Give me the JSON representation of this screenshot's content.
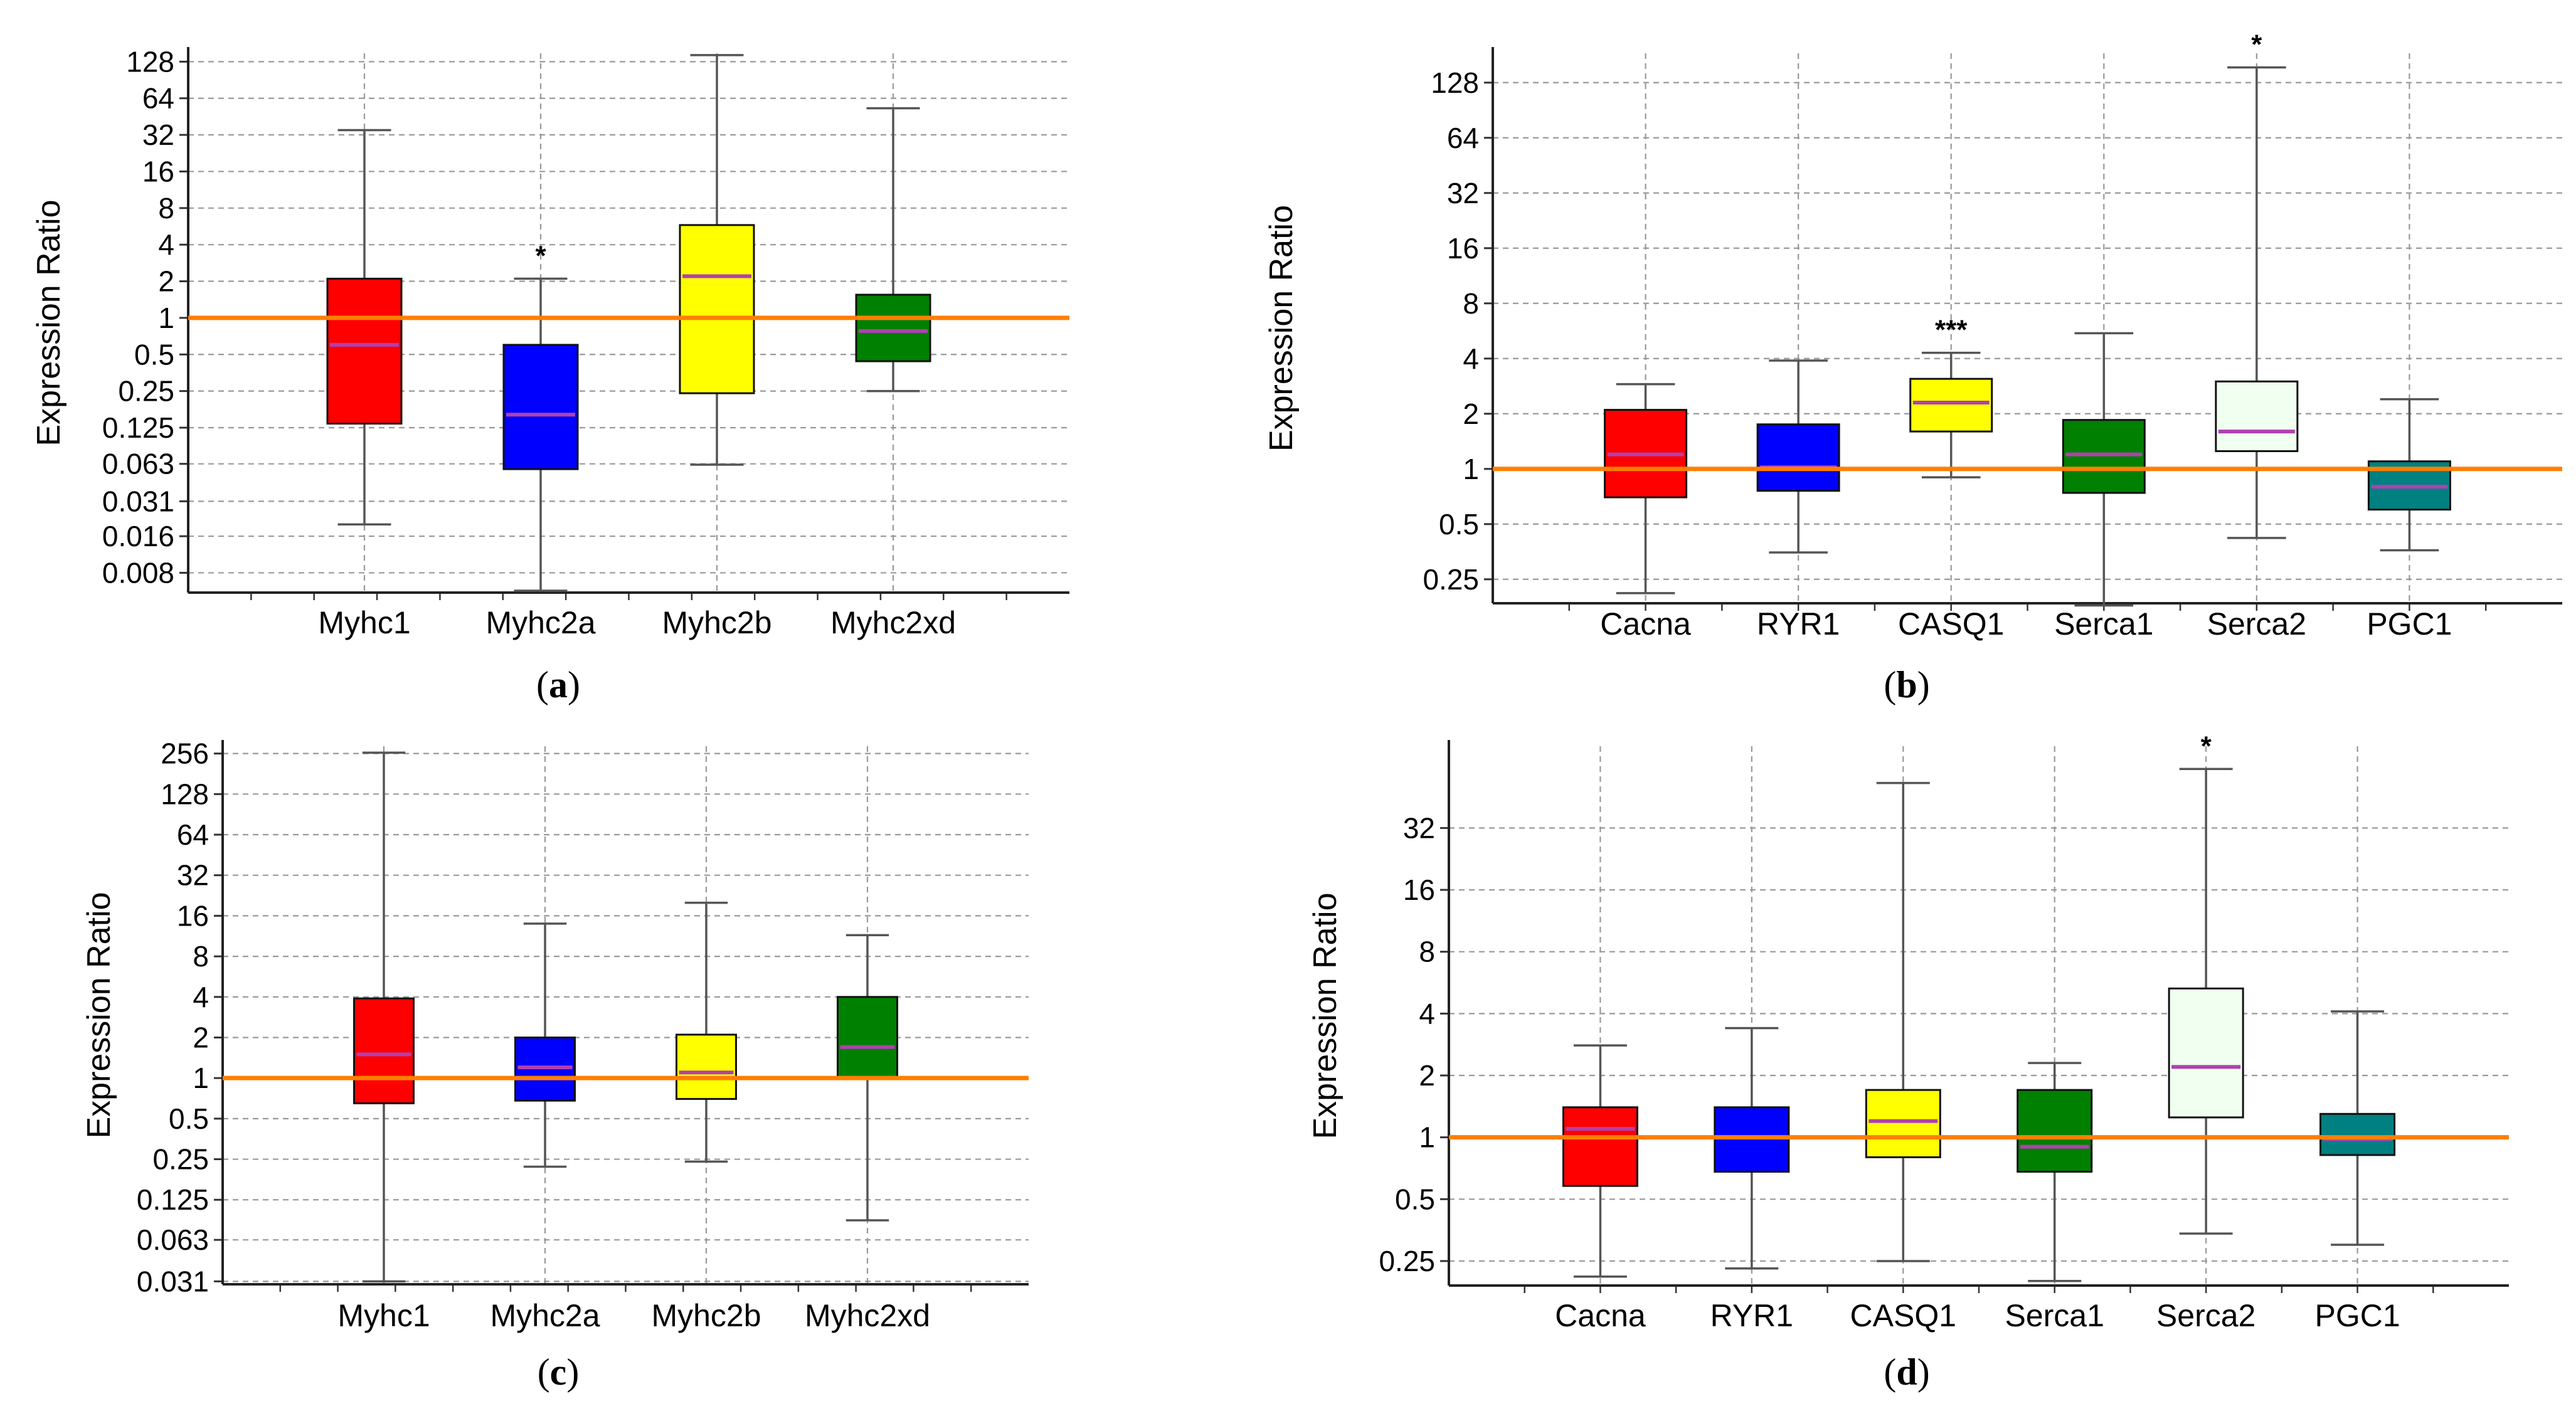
{
  "figure": {
    "colors": {
      "reference_line": "#ff7f00",
      "median": "#b040b0",
      "grid": "#999999",
      "red": "#ff0000",
      "blue": "#0000ff",
      "yellow": "#ffff00",
      "green": "#008000",
      "palegreen": "#f0fff0",
      "teal": "#008080"
    }
  },
  "chart_data": [
    {
      "id": "a",
      "type": "box",
      "panel_label": "a",
      "ylabel": "Expression Ratio",
      "yscale": "log2",
      "ylim": [
        0.0055,
        150
      ],
      "yticks": [
        {
          "v": 0.008,
          "label": "0.008"
        },
        {
          "v": 0.016,
          "label": "0.016"
        },
        {
          "v": 0.031,
          "label": "0.031"
        },
        {
          "v": 0.063,
          "label": "0.063"
        },
        {
          "v": 0.125,
          "label": "0.125"
        },
        {
          "v": 0.25,
          "label": "0.25"
        },
        {
          "v": 0.5,
          "label": "0.5"
        },
        {
          "v": 1,
          "label": "1"
        },
        {
          "v": 2,
          "label": "2"
        },
        {
          "v": 4,
          "label": "4"
        },
        {
          "v": 8,
          "label": "8"
        },
        {
          "v": 16,
          "label": "16"
        },
        {
          "v": 32,
          "label": "32"
        },
        {
          "v": 64,
          "label": "64"
        },
        {
          "v": 128,
          "label": "128"
        }
      ],
      "reference_line": 1,
      "grid": true,
      "boxes": [
        {
          "label": "Myhc1",
          "color": "red",
          "whisker_low": 0.02,
          "q1": 0.135,
          "median": 0.6,
          "q3": 2.1,
          "whisker_high": 35,
          "annotation": ""
        },
        {
          "label": "Myhc2a",
          "color": "blue",
          "whisker_low": 0.0057,
          "q1": 0.057,
          "median": 0.16,
          "q3": 0.6,
          "whisker_high": 2.1,
          "annotation": "*"
        },
        {
          "label": "Myhc2b",
          "color": "yellow",
          "whisker_low": 0.062,
          "q1": 0.24,
          "median": 2.2,
          "q3": 5.8,
          "whisker_high": 145,
          "annotation": ""
        },
        {
          "label": "Myhc2xd",
          "color": "green",
          "whisker_low": 0.25,
          "q1": 0.44,
          "median": 0.78,
          "q3": 1.55,
          "whisker_high": 53,
          "annotation": ""
        }
      ]
    },
    {
      "id": "b",
      "type": "box",
      "panel_label": "b",
      "ylabel": "Expression Ratio",
      "yscale": "log2",
      "ylim": [
        0.185,
        185
      ],
      "yticks": [
        {
          "v": 0.25,
          "label": "0.25"
        },
        {
          "v": 0.5,
          "label": "0.5"
        },
        {
          "v": 1,
          "label": "1"
        },
        {
          "v": 2,
          "label": "2"
        },
        {
          "v": 4,
          "label": "4"
        },
        {
          "v": 8,
          "label": "8"
        },
        {
          "v": 16,
          "label": "16"
        },
        {
          "v": 32,
          "label": "32"
        },
        {
          "v": 64,
          "label": "64"
        },
        {
          "v": 128,
          "label": "128"
        }
      ],
      "reference_line": 1,
      "grid": true,
      "boxes": [
        {
          "label": "Cacna",
          "color": "red",
          "whisker_low": 0.21,
          "q1": 0.7,
          "median": 1.2,
          "q3": 2.1,
          "whisker_high": 2.9,
          "annotation": ""
        },
        {
          "label": "RYR1",
          "color": "blue",
          "whisker_low": 0.35,
          "q1": 0.76,
          "median": 1.02,
          "q3": 1.75,
          "whisker_high": 3.9,
          "annotation": ""
        },
        {
          "label": "CASQ1",
          "color": "yellow",
          "whisker_low": 0.9,
          "q1": 1.6,
          "median": 2.3,
          "q3": 3.1,
          "whisker_high": 4.3,
          "annotation": "***"
        },
        {
          "label": "Serca1",
          "color": "green",
          "whisker_low": 0.18,
          "q1": 0.74,
          "median": 1.2,
          "q3": 1.85,
          "whisker_high": 5.5,
          "annotation": ""
        },
        {
          "label": "Serca2",
          "color": "palegreen",
          "whisker_low": 0.42,
          "q1": 1.25,
          "median": 1.6,
          "q3": 3.0,
          "whisker_high": 155,
          "annotation": "*"
        },
        {
          "label": "PGC1",
          "color": "teal",
          "whisker_low": 0.36,
          "q1": 0.6,
          "median": 0.8,
          "q3": 1.1,
          "whisker_high": 2.4,
          "annotation": ""
        }
      ]
    },
    {
      "id": "c",
      "type": "box",
      "panel_label": "c",
      "ylabel": "Expression Ratio",
      "yscale": "log2",
      "ylim": [
        0.0295,
        290
      ],
      "yticks": [
        {
          "v": 0.031,
          "label": "0.031"
        },
        {
          "v": 0.063,
          "label": "0.063"
        },
        {
          "v": 0.125,
          "label": "0.125"
        },
        {
          "v": 0.25,
          "label": "0.25"
        },
        {
          "v": 0.5,
          "label": "0.5"
        },
        {
          "v": 1,
          "label": "1"
        },
        {
          "v": 2,
          "label": "2"
        },
        {
          "v": 4,
          "label": "4"
        },
        {
          "v": 8,
          "label": "8"
        },
        {
          "v": 16,
          "label": "16"
        },
        {
          "v": 32,
          "label": "32"
        },
        {
          "v": 64,
          "label": "64"
        },
        {
          "v": 128,
          "label": "128"
        },
        {
          "v": 256,
          "label": "256"
        }
      ],
      "reference_line": 1,
      "grid": true,
      "boxes": [
        {
          "label": "Myhc1",
          "color": "red",
          "whisker_low": 0.031,
          "q1": 0.65,
          "median": 1.5,
          "q3": 3.9,
          "whisker_high": 260,
          "annotation": ""
        },
        {
          "label": "Myhc2a",
          "color": "blue",
          "whisker_low": 0.22,
          "q1": 0.68,
          "median": 1.2,
          "q3": 2.0,
          "whisker_high": 14,
          "annotation": ""
        },
        {
          "label": "Myhc2b",
          "color": "yellow",
          "whisker_low": 0.24,
          "q1": 0.7,
          "median": 1.1,
          "q3": 2.1,
          "whisker_high": 20,
          "annotation": ""
        },
        {
          "label": "Myhc2xd",
          "color": "green",
          "whisker_low": 0.088,
          "q1": 1.0,
          "median": 1.7,
          "q3": 4.0,
          "whisker_high": 11.5,
          "annotation": ""
        }
      ]
    },
    {
      "id": "d",
      "type": "box",
      "panel_label": "d",
      "ylabel": "Expression Ratio",
      "yscale": "log2",
      "ylim": [
        0.19,
        80
      ],
      "yticks": [
        {
          "v": 0.25,
          "label": "0.25"
        },
        {
          "v": 0.5,
          "label": "0.5"
        },
        {
          "v": 1,
          "label": "1"
        },
        {
          "v": 2,
          "label": "2"
        },
        {
          "v": 4,
          "label": "4"
        },
        {
          "v": 8,
          "label": "8"
        },
        {
          "v": 16,
          "label": "16"
        },
        {
          "v": 32,
          "label": "32"
        }
      ],
      "reference_line": 1,
      "grid": true,
      "boxes": [
        {
          "label": "Cacna",
          "color": "red",
          "whisker_low": 0.21,
          "q1": 0.58,
          "median": 1.1,
          "q3": 1.4,
          "whisker_high": 2.8,
          "annotation": ""
        },
        {
          "label": "RYR1",
          "color": "blue",
          "whisker_low": 0.23,
          "q1": 0.68,
          "median": 1.0,
          "q3": 1.4,
          "whisker_high": 3.4,
          "annotation": ""
        },
        {
          "label": "CASQ1",
          "color": "yellow",
          "whisker_low": 0.25,
          "q1": 0.8,
          "median": 1.2,
          "q3": 1.7,
          "whisker_high": 53,
          "annotation": ""
        },
        {
          "label": "Serca1",
          "color": "green",
          "whisker_low": 0.2,
          "q1": 0.68,
          "median": 0.9,
          "q3": 1.7,
          "whisker_high": 2.3,
          "annotation": ""
        },
        {
          "label": "Serca2",
          "color": "palegreen",
          "whisker_low": 0.34,
          "q1": 1.25,
          "median": 2.2,
          "q3": 5.3,
          "whisker_high": 62,
          "annotation": "*"
        },
        {
          "label": "PGC1",
          "color": "teal",
          "whisker_low": 0.3,
          "q1": 0.82,
          "median": 0.98,
          "q3": 1.3,
          "whisker_high": 4.1,
          "annotation": ""
        }
      ]
    }
  ]
}
